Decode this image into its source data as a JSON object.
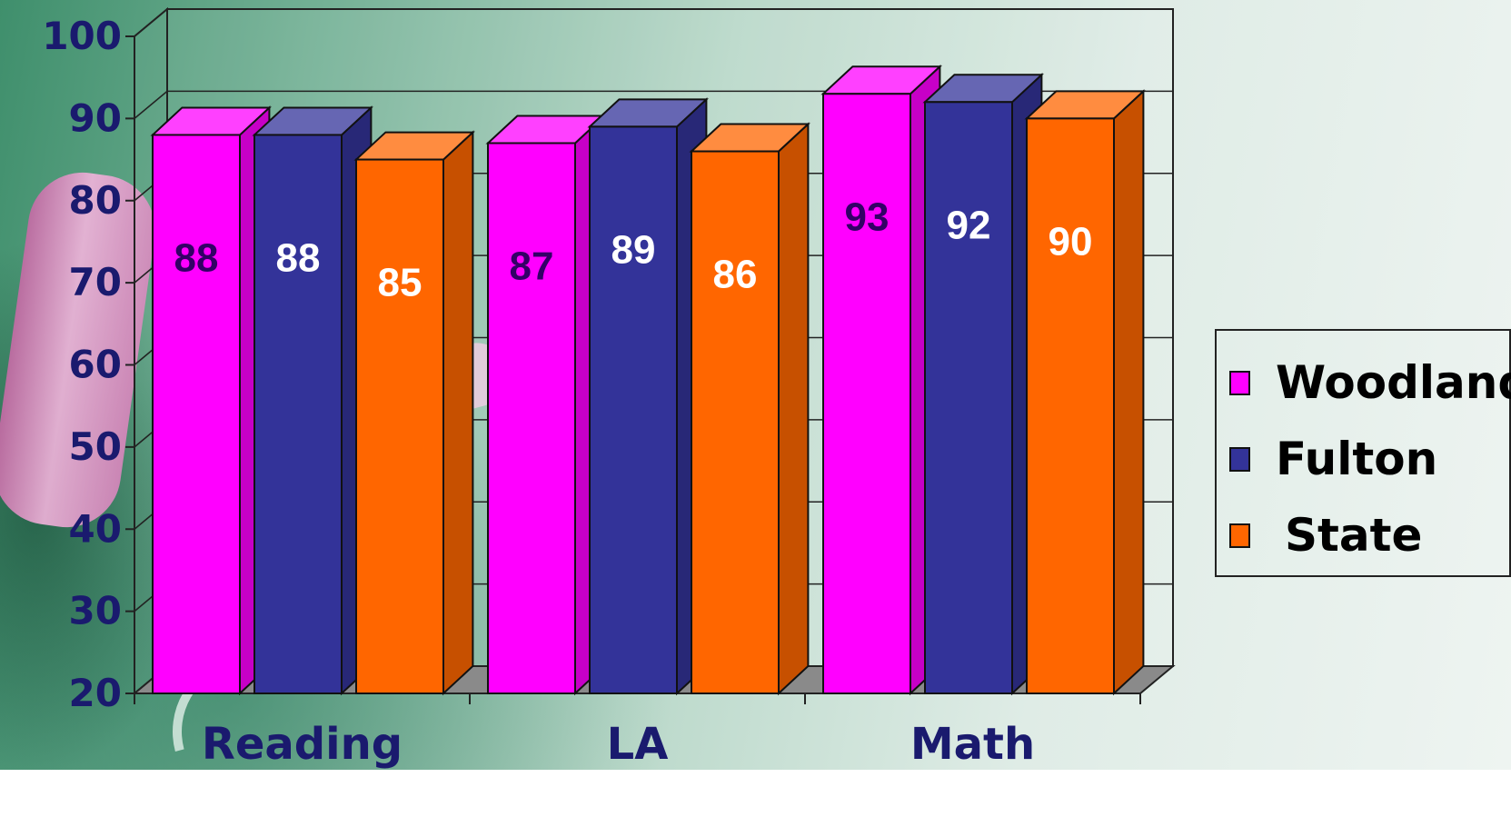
{
  "chart_data": {
    "type": "bar",
    "categories": [
      "Reading",
      "LA",
      "Math"
    ],
    "series": [
      {
        "name": "Woodland",
        "values": [
          88,
          87,
          93
        ],
        "color": "#FF00FF"
      },
      {
        "name": "Fulton",
        "values": [
          88,
          89,
          92
        ],
        "color": "#333399"
      },
      {
        "name": "State",
        "values": [
          85,
          86,
          90
        ],
        "color": "#FF6600"
      }
    ],
    "y_ticks": [
      "20",
      "30",
      "40",
      "50",
      "60",
      "70",
      "80",
      "90",
      "100"
    ],
    "ylim": [
      20,
      100
    ],
    "grid": true,
    "legend_position": "right",
    "style": "3d-column",
    "label_colors": {
      "Woodland": "#330066",
      "Fulton": "#FFFFFF",
      "State": "#FFFFFF"
    },
    "axis_text_color": "#1a1a6e"
  }
}
